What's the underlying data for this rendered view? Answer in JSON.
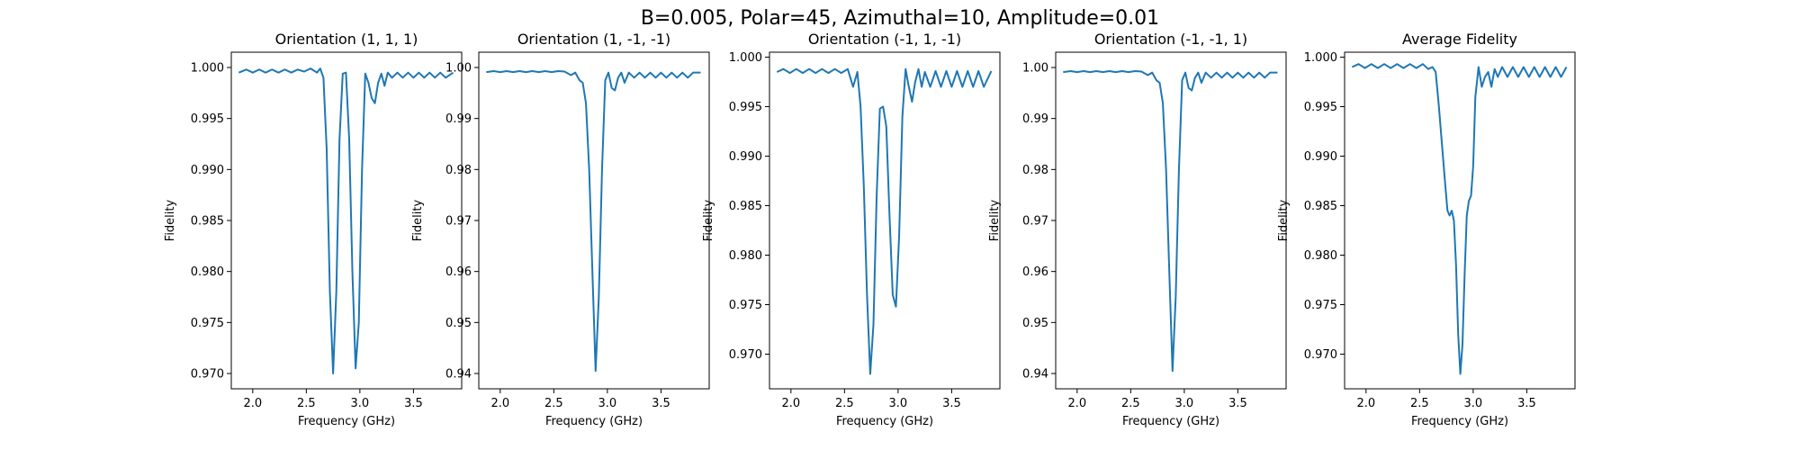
{
  "figure": {
    "suptitle": "B=0.005, Polar=45, Azimuthal=10, Amplitude=0.01"
  },
  "chart_data": [
    {
      "type": "line",
      "title": "Orientation (1, 1, 1)",
      "xlabel": "Frequency (GHz)",
      "ylabel": "Fidelity",
      "xlim": [
        1.8,
        3.95
      ],
      "ylim": [
        0.9685,
        1.0015
      ],
      "xticks": [
        2.0,
        2.5,
        3.0,
        3.5
      ],
      "xtick_labels": [
        "2.0",
        "2.5",
        "3.0",
        "3.5"
      ],
      "yticks": [
        0.97,
        0.975,
        0.98,
        0.985,
        0.99,
        0.995,
        1.0
      ],
      "ytick_labels": [
        "0.970",
        "0.975",
        "0.980",
        "0.985",
        "0.990",
        "0.995",
        "1.000"
      ],
      "grid": false,
      "series": [
        {
          "color": "#1f77b4",
          "x": [
            1.87,
            1.94,
            2.0,
            2.06,
            2.12,
            2.18,
            2.24,
            2.3,
            2.36,
            2.42,
            2.48,
            2.54,
            2.6,
            2.63,
            2.66,
            2.69,
            2.72,
            2.75,
            2.78,
            2.81,
            2.84,
            2.87,
            2.9,
            2.93,
            2.96,
            2.99,
            3.02,
            3.05,
            3.08,
            3.11,
            3.14,
            3.17,
            3.2,
            3.23,
            3.26,
            3.3,
            3.35,
            3.4,
            3.45,
            3.5,
            3.55,
            3.6,
            3.65,
            3.7,
            3.75,
            3.8,
            3.87
          ],
          "y": [
            0.9995,
            0.9998,
            0.9995,
            0.9998,
            0.9995,
            0.9998,
            0.9995,
            0.9998,
            0.9995,
            0.9998,
            0.9996,
            0.9999,
            0.9995,
            0.9999,
            0.999,
            0.992,
            0.978,
            0.97,
            0.978,
            0.993,
            0.9994,
            0.9995,
            0.993,
            0.98,
            0.9705,
            0.975,
            0.99,
            0.9994,
            0.9985,
            0.997,
            0.9965,
            0.9985,
            0.9994,
            0.9982,
            0.9995,
            0.999,
            0.9995,
            0.999,
            0.9995,
            0.999,
            0.9995,
            0.999,
            0.9995,
            0.999,
            0.9995,
            0.999,
            0.9995
          ]
        }
      ]
    },
    {
      "type": "line",
      "title": "Orientation (1, -1, -1)",
      "xlabel": "Frequency (GHz)",
      "ylabel": "Fidelity",
      "xlim": [
        1.8,
        3.95
      ],
      "ylim": [
        0.937,
        1.003
      ],
      "xticks": [
        2.0,
        2.5,
        3.0,
        3.5
      ],
      "xtick_labels": [
        "2.0",
        "2.5",
        "3.0",
        "3.5"
      ],
      "yticks": [
        0.94,
        0.95,
        0.96,
        0.97,
        0.98,
        0.99,
        1.0
      ],
      "ytick_labels": [
        "0.94",
        "0.95",
        "0.96",
        "0.97",
        "0.98",
        "0.99",
        "1.00"
      ],
      "grid": false,
      "series": [
        {
          "color": "#1f77b4",
          "x": [
            1.87,
            1.94,
            2.0,
            2.06,
            2.12,
            2.18,
            2.24,
            2.3,
            2.36,
            2.42,
            2.48,
            2.54,
            2.6,
            2.66,
            2.7,
            2.74,
            2.77,
            2.8,
            2.83,
            2.86,
            2.89,
            2.92,
            2.95,
            2.98,
            3.01,
            3.04,
            3.07,
            3.1,
            3.13,
            3.16,
            3.2,
            3.25,
            3.3,
            3.35,
            3.4,
            3.45,
            3.5,
            3.55,
            3.6,
            3.65,
            3.7,
            3.75,
            3.8,
            3.87
          ],
          "y": [
            0.9991,
            0.9993,
            0.9991,
            0.9993,
            0.9991,
            0.9993,
            0.9991,
            0.9993,
            0.9991,
            0.9993,
            0.9991,
            0.9993,
            0.9992,
            0.9985,
            0.999,
            0.9975,
            0.997,
            0.993,
            0.98,
            0.96,
            0.9405,
            0.955,
            0.98,
            0.9975,
            0.999,
            0.996,
            0.9955,
            0.998,
            0.999,
            0.997,
            0.999,
            0.998,
            0.999,
            0.998,
            0.999,
            0.998,
            0.999,
            0.998,
            0.999,
            0.998,
            0.999,
            0.998,
            0.999,
            0.999
          ]
        }
      ]
    },
    {
      "type": "line",
      "title": "Orientation (-1, 1, -1)",
      "xlabel": "Frequency (GHz)",
      "ylabel": "Fidelity",
      "xlim": [
        1.8,
        3.95
      ],
      "ylim": [
        0.9665,
        1.0005
      ],
      "xticks": [
        2.0,
        2.5,
        3.0,
        3.5
      ],
      "xtick_labels": [
        "2.0",
        "2.5",
        "3.0",
        "3.5"
      ],
      "yticks": [
        0.97,
        0.975,
        0.98,
        0.985,
        0.99,
        0.995,
        1.0
      ],
      "ytick_labels": [
        "0.970",
        "0.975",
        "0.980",
        "0.985",
        "0.990",
        "0.995",
        "1.000"
      ],
      "grid": false,
      "series": [
        {
          "color": "#1f77b4",
          "x": [
            1.87,
            1.93,
            1.99,
            2.05,
            2.11,
            2.17,
            2.23,
            2.29,
            2.35,
            2.41,
            2.47,
            2.53,
            2.58,
            2.62,
            2.65,
            2.68,
            2.71,
            2.74,
            2.77,
            2.8,
            2.83,
            2.86,
            2.89,
            2.92,
            2.95,
            2.98,
            3.01,
            3.04,
            3.07,
            3.1,
            3.13,
            3.16,
            3.19,
            3.22,
            3.25,
            3.3,
            3.35,
            3.4,
            3.45,
            3.5,
            3.55,
            3.6,
            3.65,
            3.7,
            3.75,
            3.8,
            3.87
          ],
          "y": [
            0.9985,
            0.9988,
            0.9984,
            0.9988,
            0.9984,
            0.9988,
            0.9984,
            0.9988,
            0.9984,
            0.9988,
            0.9984,
            0.9988,
            0.997,
            0.9985,
            0.995,
            0.987,
            0.976,
            0.968,
            0.973,
            0.986,
            0.9948,
            0.995,
            0.993,
            0.984,
            0.976,
            0.9748,
            0.982,
            0.994,
            0.9988,
            0.997,
            0.9955,
            0.9975,
            0.9988,
            0.997,
            0.9985,
            0.997,
            0.9986,
            0.997,
            0.9986,
            0.997,
            0.9986,
            0.997,
            0.9986,
            0.997,
            0.9986,
            0.997,
            0.9986
          ]
        }
      ]
    },
    {
      "type": "line",
      "title": "Orientation (-1, -1, 1)",
      "xlabel": "Frequency (GHz)",
      "ylabel": "Fidelity",
      "xlim": [
        1.8,
        3.95
      ],
      "ylim": [
        0.937,
        1.003
      ],
      "xticks": [
        2.0,
        2.5,
        3.0,
        3.5
      ],
      "xtick_labels": [
        "2.0",
        "2.5",
        "3.0",
        "3.5"
      ],
      "yticks": [
        0.94,
        0.95,
        0.96,
        0.97,
        0.98,
        0.99,
        1.0
      ],
      "ytick_labels": [
        "0.94",
        "0.95",
        "0.96",
        "0.97",
        "0.98",
        "0.99",
        "1.00"
      ],
      "grid": false,
      "series": [
        {
          "color": "#1f77b4",
          "x": [
            1.87,
            1.94,
            2.0,
            2.06,
            2.12,
            2.18,
            2.24,
            2.3,
            2.36,
            2.42,
            2.48,
            2.54,
            2.6,
            2.66,
            2.7,
            2.74,
            2.77,
            2.8,
            2.83,
            2.86,
            2.89,
            2.92,
            2.95,
            2.98,
            3.01,
            3.04,
            3.07,
            3.1,
            3.13,
            3.16,
            3.2,
            3.25,
            3.3,
            3.35,
            3.4,
            3.45,
            3.5,
            3.55,
            3.6,
            3.65,
            3.7,
            3.75,
            3.8,
            3.87
          ],
          "y": [
            0.9991,
            0.9993,
            0.9991,
            0.9993,
            0.9991,
            0.9993,
            0.9991,
            0.9993,
            0.9991,
            0.9993,
            0.9991,
            0.9993,
            0.9992,
            0.9985,
            0.999,
            0.9975,
            0.997,
            0.993,
            0.98,
            0.96,
            0.9405,
            0.955,
            0.98,
            0.9975,
            0.999,
            0.996,
            0.9955,
            0.998,
            0.999,
            0.997,
            0.999,
            0.998,
            0.999,
            0.998,
            0.999,
            0.998,
            0.999,
            0.998,
            0.999,
            0.998,
            0.999,
            0.998,
            0.999,
            0.999
          ]
        }
      ]
    },
    {
      "type": "line",
      "title": "Average Fidelity",
      "xlabel": "Frequency (GHz)",
      "ylabel": "Fidelity",
      "xlim": [
        1.8,
        3.95
      ],
      "ylim": [
        0.9665,
        1.0005
      ],
      "xticks": [
        2.0,
        2.5,
        3.0,
        3.5
      ],
      "xtick_labels": [
        "2.0",
        "2.5",
        "3.0",
        "3.5"
      ],
      "yticks": [
        0.97,
        0.975,
        0.98,
        0.985,
        0.99,
        0.995,
        1.0
      ],
      "ytick_labels": [
        "0.970",
        "0.975",
        "0.980",
        "0.985",
        "0.990",
        "0.995",
        "1.000"
      ],
      "grid": false,
      "series": [
        {
          "color": "#1f77b4",
          "x": [
            1.87,
            1.93,
            1.99,
            2.05,
            2.11,
            2.17,
            2.23,
            2.29,
            2.35,
            2.41,
            2.47,
            2.53,
            2.58,
            2.62,
            2.65,
            2.68,
            2.71,
            2.74,
            2.76,
            2.78,
            2.8,
            2.82,
            2.84,
            2.86,
            2.88,
            2.9,
            2.92,
            2.94,
            2.96,
            2.98,
            3.0,
            3.02,
            3.05,
            3.08,
            3.11,
            3.14,
            3.17,
            3.2,
            3.23,
            3.27,
            3.32,
            3.37,
            3.42,
            3.47,
            3.52,
            3.57,
            3.62,
            3.67,
            3.72,
            3.77,
            3.82,
            3.87
          ],
          "y": [
            0.999,
            0.9993,
            0.9989,
            0.9993,
            0.9989,
            0.9993,
            0.9989,
            0.9993,
            0.9989,
            0.9993,
            0.9989,
            0.9993,
            0.9988,
            0.999,
            0.9985,
            0.995,
            0.991,
            0.987,
            0.9845,
            0.984,
            0.9845,
            0.9835,
            0.979,
            0.972,
            0.968,
            0.971,
            0.978,
            0.984,
            0.9855,
            0.986,
            0.989,
            0.996,
            0.999,
            0.997,
            0.998,
            0.9985,
            0.997,
            0.9988,
            0.998,
            0.999,
            0.998,
            0.999,
            0.998,
            0.999,
            0.998,
            0.999,
            0.998,
            0.999,
            0.998,
            0.999,
            0.998,
            0.999
          ]
        }
      ]
    }
  ]
}
